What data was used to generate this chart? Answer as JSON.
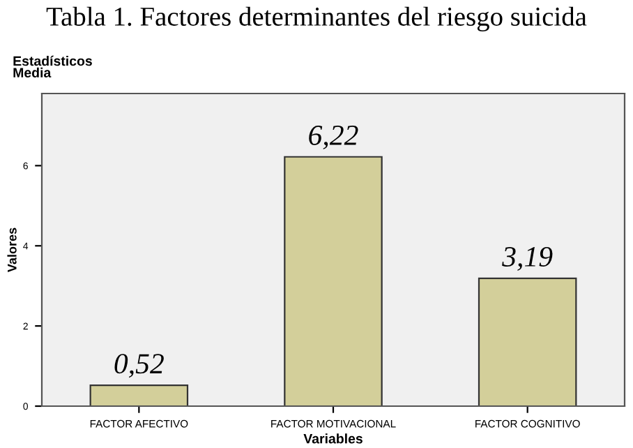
{
  "chart_data": {
    "type": "bar",
    "title": "Tabla 1. Factores determinantes del riesgo suicida",
    "subtitle": "Estadísticos\nMedia",
    "xlabel": "Variables",
    "ylabel": "Valores",
    "categories": [
      "FACTOR AFECTIVO",
      "FACTOR MOTIVACIONAL",
      "FACTOR COGNITIVO"
    ],
    "values": [
      0.52,
      6.22,
      3.19
    ],
    "color": "#d3cf9a",
    "value_labels": [
      "0,52",
      "6,22",
      "3,19"
    ],
    "ylim": [
      0,
      7.8
    ],
    "yticks": [
      0,
      2,
      4,
      6
    ],
    "grid": false,
    "legend": false
  }
}
